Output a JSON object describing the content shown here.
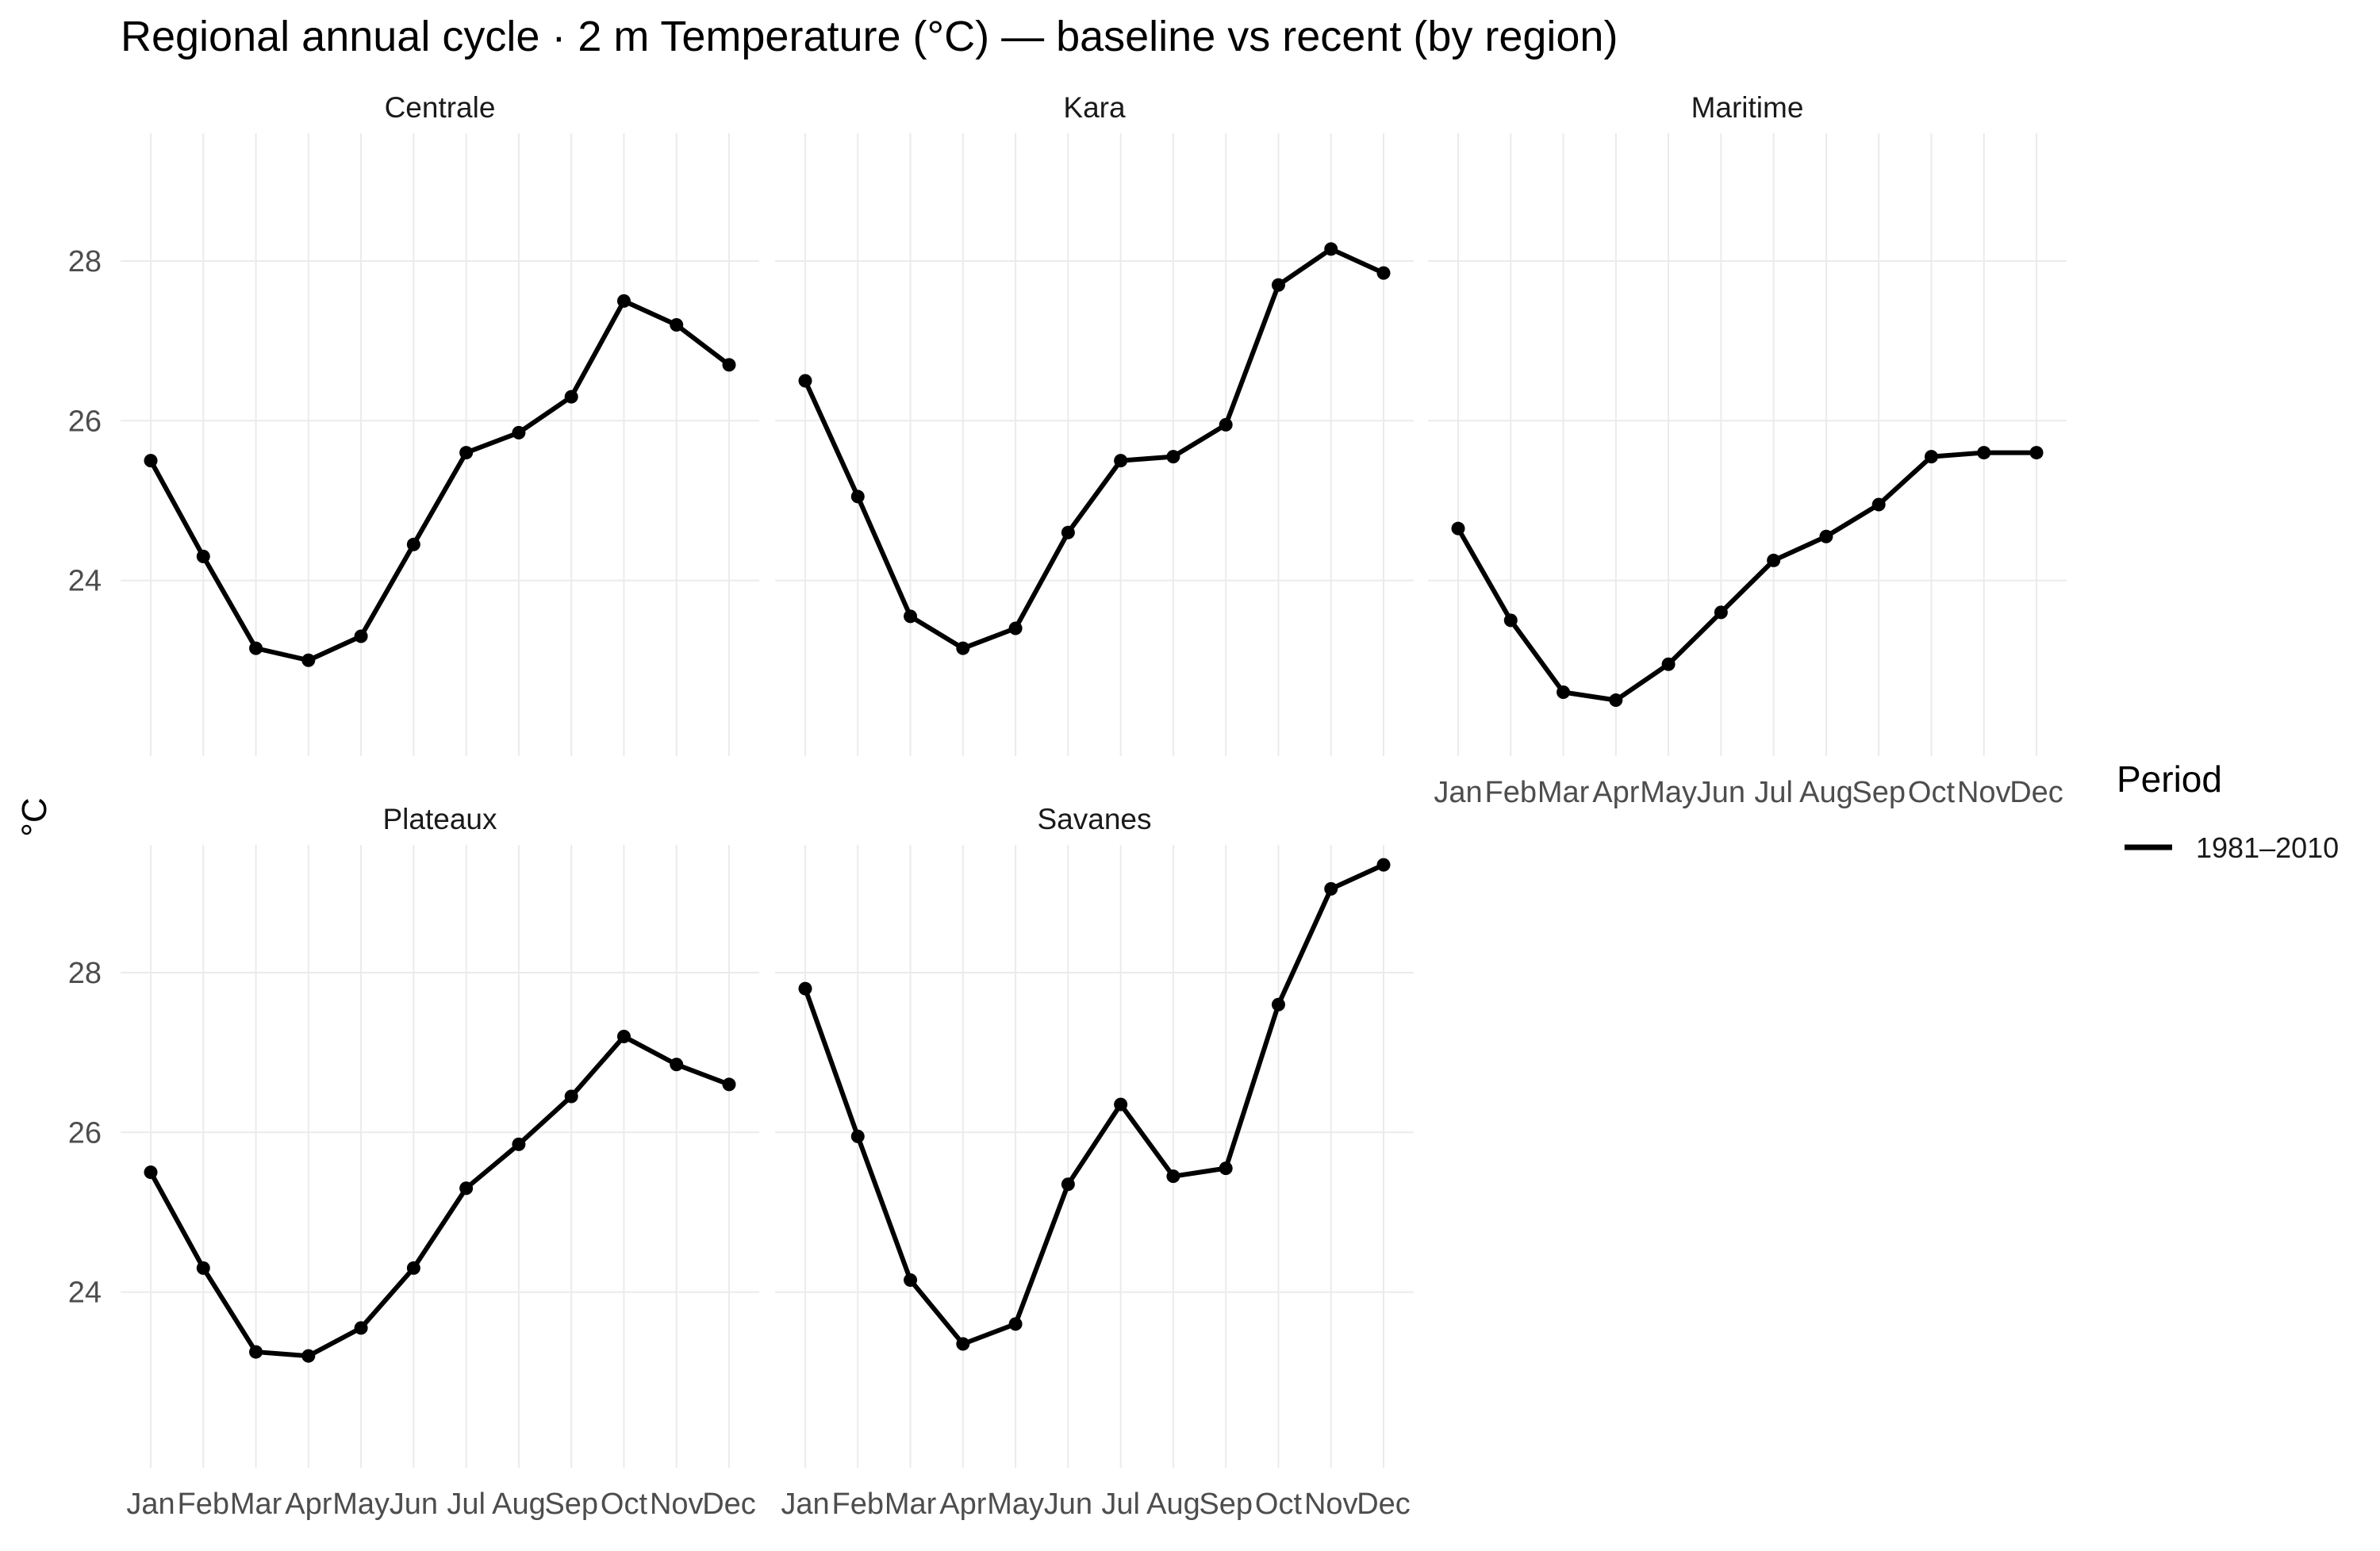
{
  "chart_data": {
    "type": "line",
    "title": "Regional annual cycle · 2 m Temperature (°C) — baseline vs recent (by region)",
    "ylabel": "°C",
    "xlabel": "",
    "categories": [
      "Jan",
      "Feb",
      "Mar",
      "Apr",
      "May",
      "Jun",
      "Jul",
      "Aug",
      "Sep",
      "Oct",
      "Nov",
      "Dec"
    ],
    "ylim": [
      21.8,
      29.6
    ],
    "yticks": [
      24,
      26,
      28
    ],
    "grid": true,
    "legend": {
      "title": "Period",
      "placement": "right",
      "entries": [
        "1981–2010"
      ]
    },
    "panels": [
      {
        "region": "Centrale",
        "series": [
          {
            "name": "1981–2010",
            "values": [
              25.5,
              24.3,
              23.15,
              23.0,
              23.3,
              24.45,
              25.6,
              25.85,
              26.3,
              27.5,
              27.2,
              26.7
            ]
          }
        ]
      },
      {
        "region": "Kara",
        "series": [
          {
            "name": "1981–2010",
            "values": [
              26.5,
              25.05,
              23.55,
              23.15,
              23.4,
              24.6,
              25.5,
              25.55,
              25.95,
              27.7,
              28.15,
              27.85
            ]
          }
        ]
      },
      {
        "region": "Maritime",
        "series": [
          {
            "name": "1981–2010",
            "values": [
              24.65,
              23.5,
              22.6,
              22.5,
              22.95,
              23.6,
              24.25,
              24.55,
              24.95,
              25.55,
              25.6,
              25.6
            ]
          }
        ]
      },
      {
        "region": "Plateaux",
        "series": [
          {
            "name": "1981–2010",
            "values": [
              25.5,
              24.3,
              23.25,
              23.2,
              23.55,
              24.3,
              25.3,
              25.85,
              26.45,
              27.2,
              26.85,
              26.6
            ]
          }
        ]
      },
      {
        "region": "Savanes",
        "series": [
          {
            "name": "1981–2010",
            "values": [
              27.8,
              25.95,
              24.15,
              23.35,
              23.6,
              25.35,
              26.35,
              25.45,
              25.55,
              27.6,
              29.05,
              29.35
            ]
          }
        ]
      }
    ]
  }
}
